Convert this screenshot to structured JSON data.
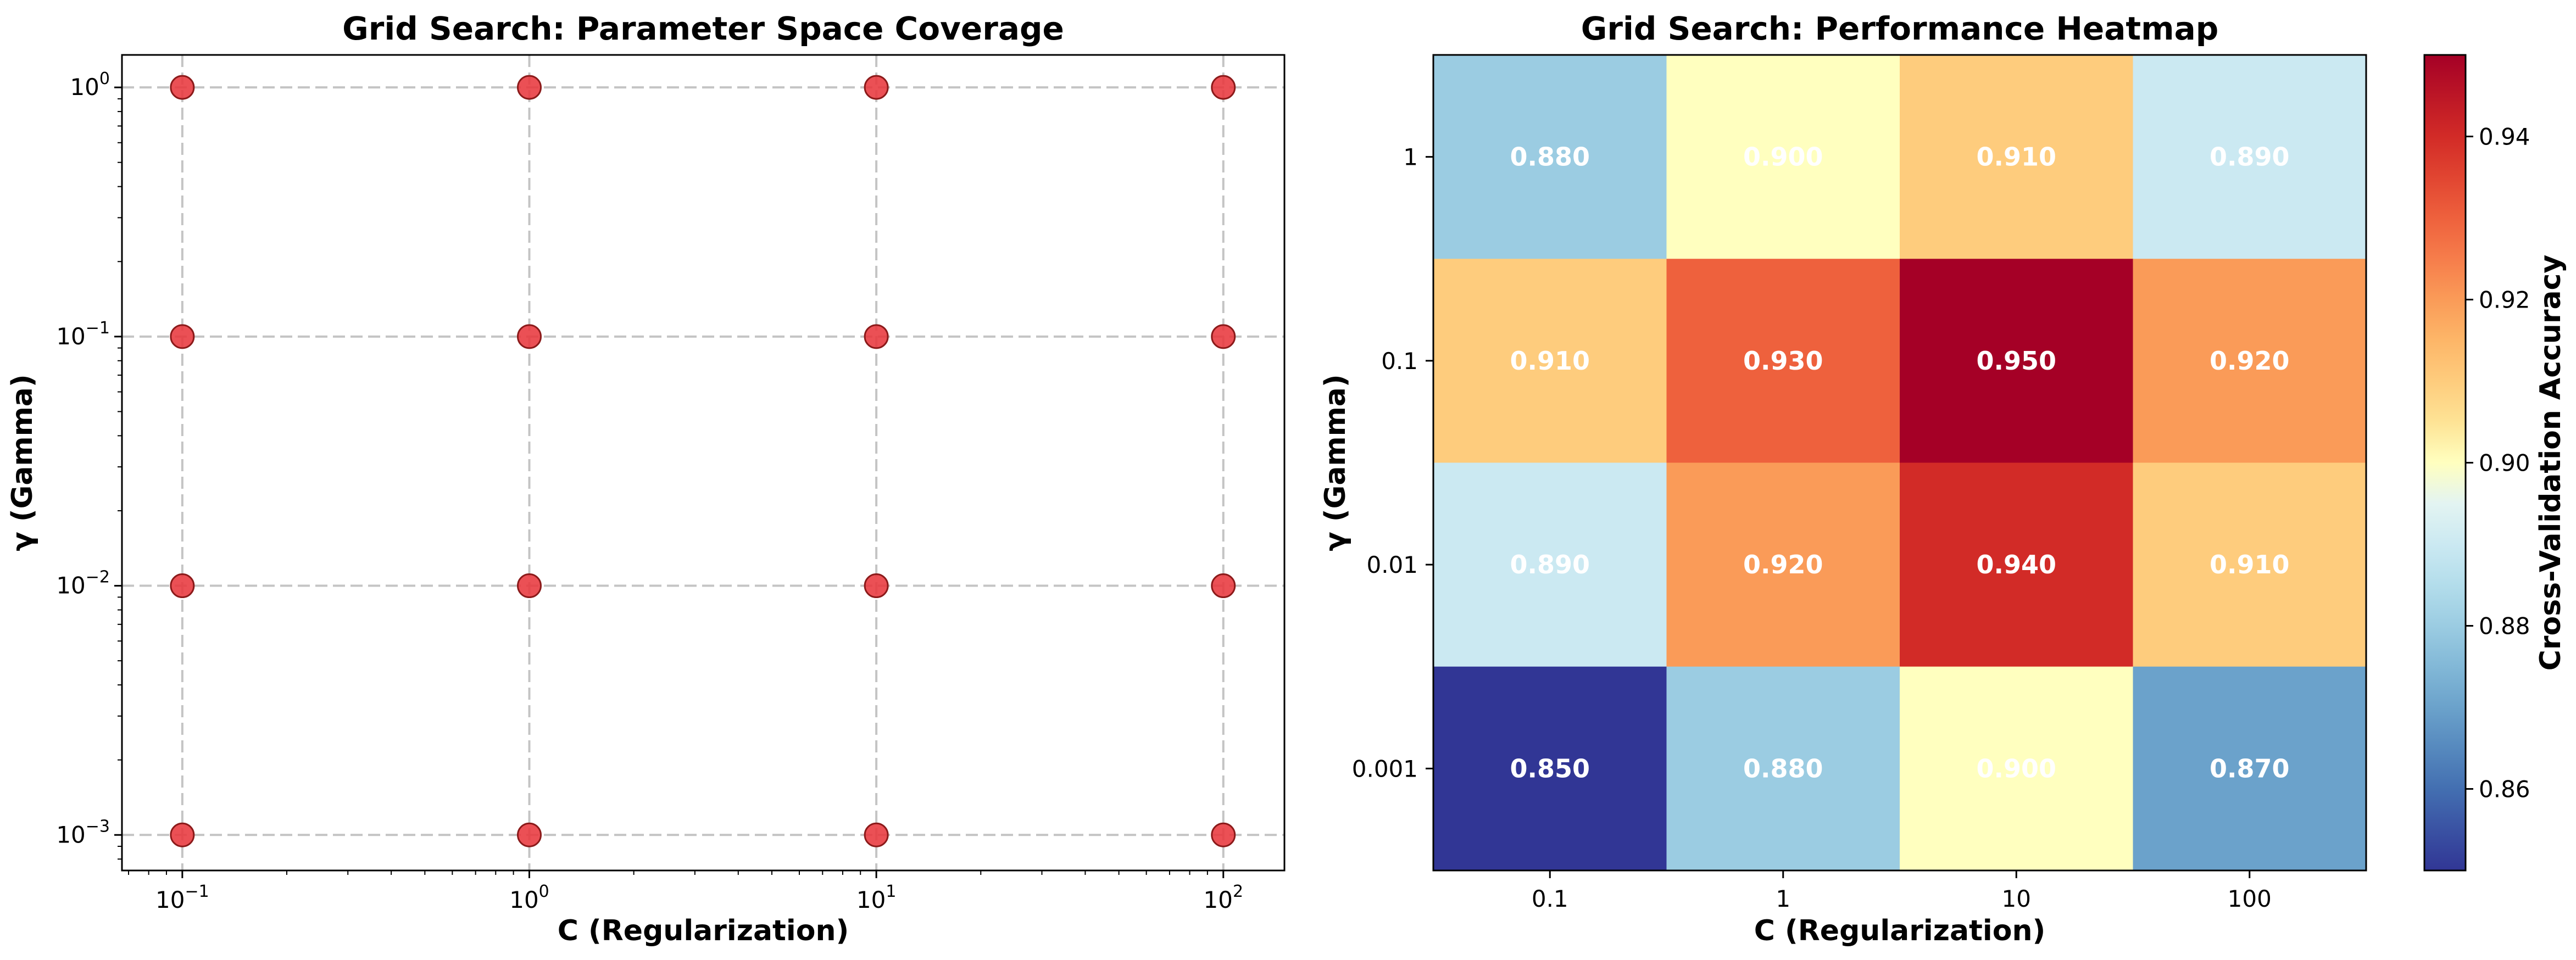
{
  "chart_data": [
    {
      "type": "scatter",
      "title": "Grid Search: Parameter Space Coverage",
      "xlabel": "C (Regularization)",
      "ylabel": "γ (Gamma)",
      "xscale": "log",
      "yscale": "log",
      "xlim": [
        0.067,
        150
      ],
      "ylim": [
        0.00072,
        1.35
      ],
      "grid": true,
      "x_ticks": [
        {
          "value": 0.1,
          "base": "10",
          "exp": "−1"
        },
        {
          "value": 1,
          "base": "10",
          "exp": "0"
        },
        {
          "value": 10,
          "base": "10",
          "exp": "1"
        },
        {
          "value": 100,
          "base": "10",
          "exp": "2"
        }
      ],
      "y_ticks": [
        {
          "value": 0.001,
          "base": "10",
          "exp": "−3"
        },
        {
          "value": 0.01,
          "base": "10",
          "exp": "−2"
        },
        {
          "value": 0.1,
          "base": "10",
          "exp": "−1"
        },
        {
          "value": 1,
          "base": "10",
          "exp": "0"
        }
      ],
      "marker_color": "#e8383d",
      "points": [
        {
          "x": 0.1,
          "y": 1
        },
        {
          "x": 1,
          "y": 1
        },
        {
          "x": 10,
          "y": 1
        },
        {
          "x": 100,
          "y": 1
        },
        {
          "x": 0.1,
          "y": 0.1
        },
        {
          "x": 1,
          "y": 0.1
        },
        {
          "x": 10,
          "y": 0.1
        },
        {
          "x": 100,
          "y": 0.1
        },
        {
          "x": 0.1,
          "y": 0.01
        },
        {
          "x": 1,
          "y": 0.01
        },
        {
          "x": 10,
          "y": 0.01
        },
        {
          "x": 100,
          "y": 0.01
        },
        {
          "x": 0.1,
          "y": 0.001
        },
        {
          "x": 1,
          "y": 0.001
        },
        {
          "x": 10,
          "y": 0.001
        },
        {
          "x": 100,
          "y": 0.001
        }
      ]
    },
    {
      "type": "heatmap",
      "title": "Grid Search: Performance Heatmap",
      "xlabel": "C (Regularization)",
      "ylabel": "γ (Gamma)",
      "x_categories": [
        "0.1",
        "1",
        "10",
        "100"
      ],
      "y_categories": [
        "1",
        "0.1",
        "0.01",
        "0.001"
      ],
      "values": [
        [
          0.88,
          0.9,
          0.91,
          0.89
        ],
        [
          0.91,
          0.93,
          0.95,
          0.92
        ],
        [
          0.89,
          0.92,
          0.94,
          0.91
        ],
        [
          0.85,
          0.88,
          0.9,
          0.87
        ]
      ],
      "cell_labels": [
        [
          "0.880",
          "0.900",
          "0.910",
          "0.890"
        ],
        [
          "0.910",
          "0.930",
          "0.950",
          "0.920"
        ],
        [
          "0.890",
          "0.920",
          "0.940",
          "0.910"
        ],
        [
          "0.850",
          "0.880",
          "0.900",
          "0.870"
        ]
      ],
      "colormap": "RdYlBu_r",
      "vmin": 0.85,
      "vmax": 0.95,
      "colorbar": {
        "label": "Cross-Validation Accuracy",
        "ticks": [
          0.86,
          0.88,
          0.9,
          0.92,
          0.94
        ],
        "tick_labels": [
          "0.86",
          "0.88",
          "0.90",
          "0.92",
          "0.94"
        ]
      }
    }
  ]
}
